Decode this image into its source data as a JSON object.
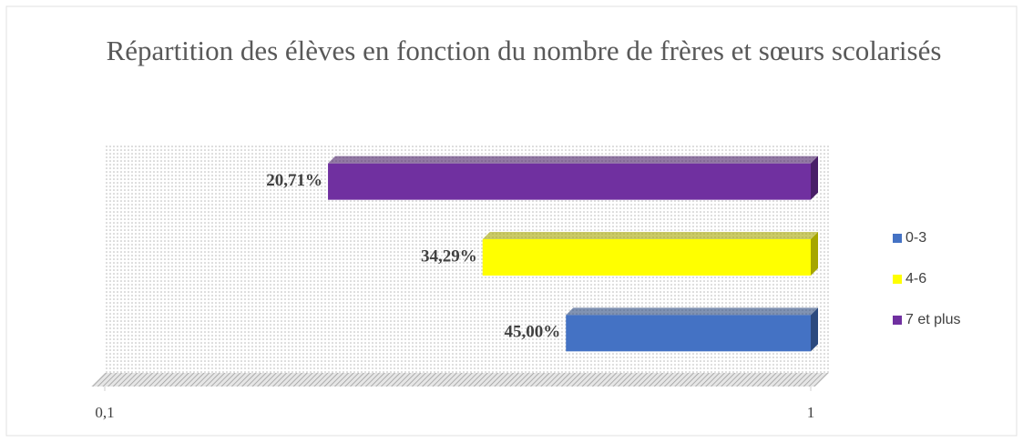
{
  "chart_data": {
    "type": "bar",
    "orientation": "horizontal",
    "title": "Répartition des élèves en fonction du nombre de frères et sœurs scolarisés",
    "xscale": "log",
    "xlim": [
      0.1,
      1
    ],
    "xticks": [
      {
        "value": 0.1,
        "label": "0,1"
      },
      1
    ],
    "legend": "right",
    "series": [
      {
        "name": "0-3",
        "color": "#4472c4",
        "values": [
          0.45
        ],
        "value_labels": [
          "45,00%"
        ]
      },
      {
        "name": "4-6",
        "color": "#ffff00",
        "values": [
          0.3429
        ],
        "value_labels": [
          "34,29%"
        ]
      },
      {
        "name": "7 et plus",
        "color": "#7030a0",
        "values": [
          0.2071
        ],
        "value_labels": [
          "20,71%"
        ]
      }
    ]
  }
}
